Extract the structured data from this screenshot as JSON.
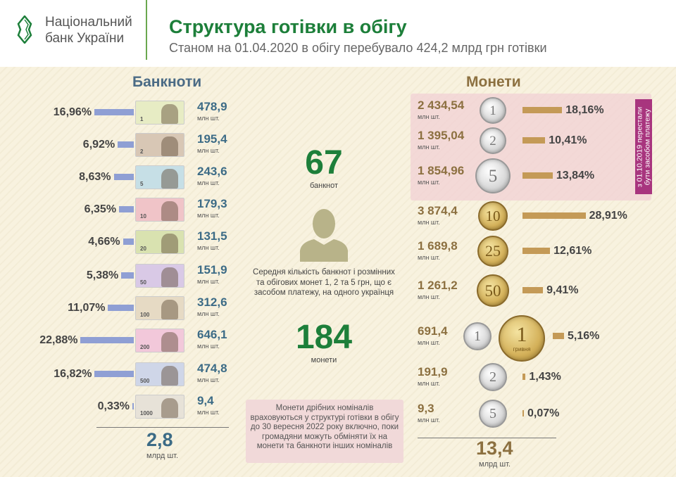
{
  "header": {
    "logo_line1": "Національний",
    "logo_line2": "банк України",
    "title": "Структура готівки в обігу",
    "subtitle": "Станом на 01.04.2020 в обігу перебувало 424,2 млрд грн готівки"
  },
  "colors": {
    "title_green": "#1d7f3a",
    "banknote_bar": "#8f9fd4",
    "coin_bar": "#c49a57",
    "banknote_value": "#3c6b86",
    "coin_value": "#8c7040",
    "withdrawn_bg": "#f1d9d9",
    "withdrawn_label": "#a8357e"
  },
  "chart_data": [
    {
      "type": "bar",
      "title": "Банкноти",
      "unit": "млн шт.",
      "categories": [
        "1",
        "2",
        "5",
        "10",
        "20",
        "50",
        "100",
        "200",
        "500",
        "1000"
      ],
      "values": [
        478.9,
        195.4,
        243.6,
        179.3,
        131.5,
        151.9,
        312.6,
        646.1,
        474.8,
        9.4
      ],
      "value_labels": [
        "478,9",
        "195,4",
        "243,6",
        "179,3",
        "131,5",
        "151,9",
        "312,6",
        "646,1",
        "474,8",
        "9,4"
      ],
      "shares": [
        16.96,
        6.92,
        8.63,
        6.35,
        4.66,
        5.38,
        11.07,
        22.88,
        16.82,
        0.33
      ],
      "share_labels": [
        "16,96%",
        "6,92%",
        "8,63%",
        "6,35%",
        "4,66%",
        "5,38%",
        "11,07%",
        "22,88%",
        "16,82%",
        "0,33%"
      ],
      "total": "2,8",
      "total_unit": "млрд шт."
    },
    {
      "type": "bar",
      "title": "Монети",
      "unit": "млн шт.",
      "categories": [
        "1",
        "2",
        "5",
        "10",
        "25",
        "50",
        "1",
        "2",
        "5"
      ],
      "coin_labels": [
        "1 копійка",
        "2 копійки",
        "5 копійок",
        "10 копійок",
        "25 копійок",
        "50 копійок",
        "1 гривня",
        "2 гривні",
        "5 гривень"
      ],
      "values": [
        2434.54,
        1395.04,
        1854.96,
        3874.4,
        1689.8,
        1261.2,
        691.4,
        191.9,
        9.3
      ],
      "value_labels": [
        "2 434,54",
        "1 395,04",
        "1 854,96",
        "3 874,4",
        "1 689,8",
        "1 261,2",
        "691,4",
        "191,9",
        "9,3"
      ],
      "shares": [
        18.16,
        10.41,
        13.84,
        28.91,
        12.61,
        9.41,
        5.16,
        1.43,
        0.07
      ],
      "share_labels": [
        "18,16%",
        "10,41%",
        "13,84%",
        "28,91%",
        "12,61%",
        "9,41%",
        "5,16%",
        "1,43%",
        "0,07%"
      ],
      "total": "13,4",
      "total_unit": "млрд шт.",
      "withdrawn_note": "з 01.10.2019 перестали бути засобом платежу"
    }
  ],
  "center": {
    "banknotes_count": "67",
    "banknotes_label": "банкнот",
    "description": "Середня кількість банкнот і розмінних та обігових монет 1, 2 та 5 грн, що є засобом платежу, на одного українця",
    "coins_count": "184",
    "coins_label": "монети",
    "small_coins_note": "Монети дрібних номіналів враховуються у структурі готівки в обігу до 30 вересня 2022 року включно, поки громадяни можуть обміняти їх на монети та банкноти інших номіналів"
  },
  "hryvnia_coin_text": "гривня"
}
